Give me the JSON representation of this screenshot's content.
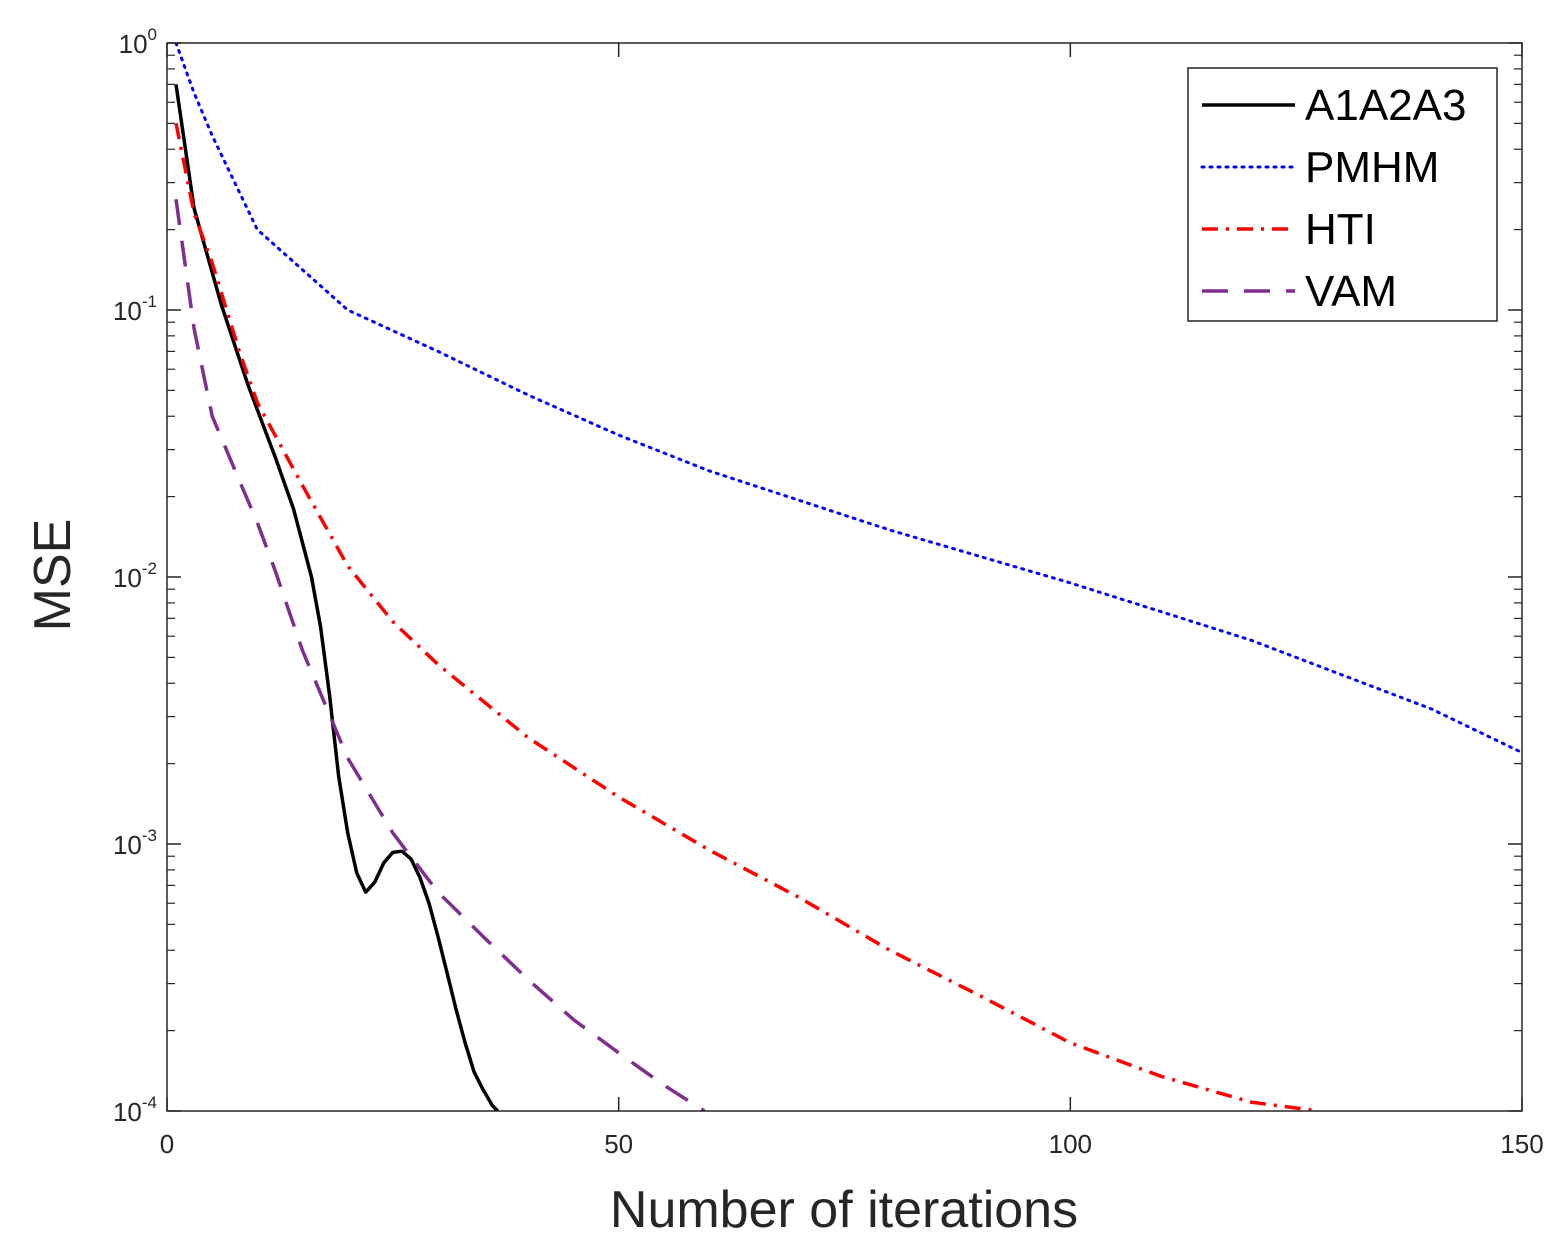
{
  "chart_data": {
    "type": "line",
    "title": "",
    "xlabel": "Number of iterations",
    "ylabel": "MSE",
    "yscale": "log",
    "xlim": [
      0,
      150
    ],
    "ylim": [
      0.0001,
      1
    ],
    "xticks": [
      0,
      50,
      100,
      150
    ],
    "xtick_labels": [
      "0",
      "50",
      "100",
      "150"
    ],
    "yticks": [
      0.0001,
      0.001,
      0.01,
      0.1,
      1
    ],
    "ytick_labels": [
      {
        "base": "10",
        "exp": "-4"
      },
      {
        "base": "10",
        "exp": "-3"
      },
      {
        "base": "10",
        "exp": "-2"
      },
      {
        "base": "10",
        "exp": "-1"
      },
      {
        "base": "10",
        "exp": "0"
      }
    ],
    "grid": false,
    "legend_position": "top-right",
    "series": [
      {
        "name": "A1A2A3",
        "color": "#000000",
        "style": "solid",
        "x": [
          1,
          3,
          6,
          9,
          12,
          14,
          16,
          17,
          18,
          19,
          20,
          21,
          22,
          23,
          24,
          25,
          26,
          27,
          28,
          29,
          30,
          31,
          32,
          33,
          34,
          35,
          36,
          36.6
        ],
        "y": [
          0.7,
          0.24,
          0.105,
          0.052,
          0.028,
          0.018,
          0.01,
          0.0065,
          0.0036,
          0.0018,
          0.0011,
          0.00078,
          0.00066,
          0.00072,
          0.00085,
          0.00093,
          0.00094,
          0.00088,
          0.00075,
          0.0006,
          0.00045,
          0.00033,
          0.00024,
          0.00018,
          0.00014,
          0.00012,
          0.000105,
          0.0001
        ]
      },
      {
        "name": "PMHM",
        "color": "#0000ff",
        "style": "dotted",
        "x": [
          1,
          3,
          5,
          10,
          20,
          30,
          40,
          50,
          60,
          80,
          100,
          120,
          140,
          150
        ],
        "y": [
          1.0,
          0.65,
          0.45,
          0.2,
          0.1,
          0.07,
          0.048,
          0.034,
          0.025,
          0.015,
          0.0095,
          0.0058,
          0.0032,
          0.0022
        ]
      },
      {
        "name": "HTI",
        "color": "#ff0000",
        "style": "dashdot",
        "x": [
          1,
          3,
          5,
          8,
          10,
          15,
          20,
          25,
          30,
          40,
          50,
          60,
          70,
          80,
          90,
          100,
          110,
          120,
          127.5
        ],
        "y": [
          0.5,
          0.23,
          0.15,
          0.07,
          0.045,
          0.022,
          0.011,
          0.0068,
          0.0047,
          0.0025,
          0.0015,
          0.00095,
          0.00063,
          0.0004,
          0.00027,
          0.00018,
          0.000135,
          0.000108,
          0.0001
        ]
      },
      {
        "name": "VAM",
        "color": "#7e2f8e",
        "style": "dashed",
        "x": [
          1,
          3,
          5,
          8,
          10,
          12,
          15,
          20,
          25,
          30,
          35,
          40,
          45,
          50,
          55,
          59.5
        ],
        "y": [
          0.26,
          0.085,
          0.04,
          0.023,
          0.016,
          0.0105,
          0.0053,
          0.0021,
          0.0011,
          0.00066,
          0.00045,
          0.00031,
          0.00022,
          0.000165,
          0.000125,
          0.0001
        ]
      }
    ]
  }
}
